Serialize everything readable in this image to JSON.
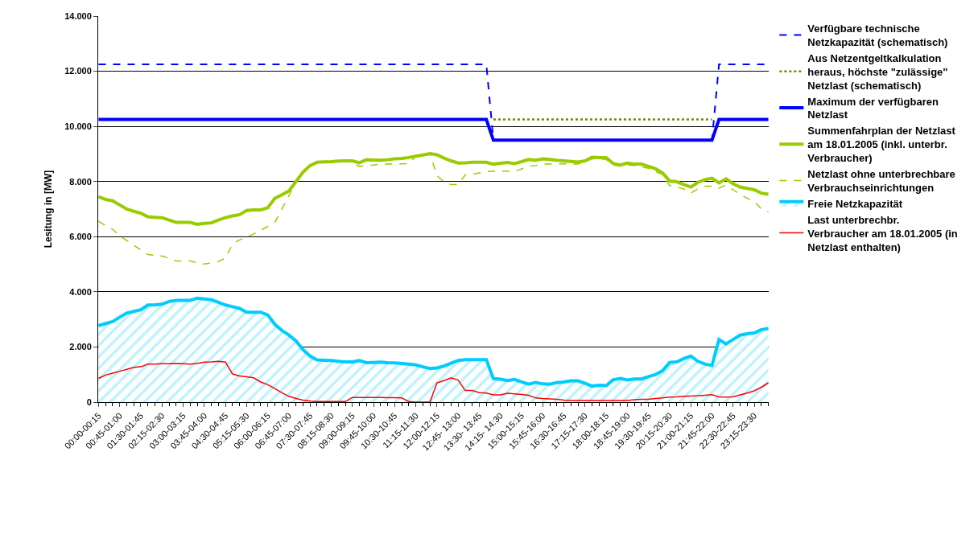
{
  "chart_data": {
    "type": "line",
    "ylabel": "Lesitung in [MW]",
    "categories": [
      "00:00-00:15",
      null,
      null,
      "00:45-01:00",
      null,
      null,
      "01:30-01:45",
      null,
      null,
      "02:15-02:30",
      null,
      null,
      "03:00-03:15",
      null,
      null,
      "03:45-04:00",
      null,
      null,
      "04:30-04:45",
      null,
      null,
      "05:15-05:30",
      null,
      null,
      "06:00-06:15",
      null,
      null,
      "06:45-07:00",
      null,
      null,
      "07:30-07:45",
      null,
      null,
      "08:15-08:30",
      null,
      null,
      "09:00-09:15",
      null,
      null,
      "09:45-10:00",
      null,
      null,
      "10:30-10:45",
      null,
      null,
      "11:15-11:30",
      null,
      null,
      "12:00-12:15",
      null,
      null,
      "12:45- 13:00",
      null,
      null,
      "13:30- 13:45",
      null,
      null,
      "14:15- 14:30",
      null,
      null,
      "15:00-15:15",
      null,
      null,
      "15:45-16:00",
      null,
      null,
      "16:30-16:45",
      null,
      null,
      "17:15-17:30",
      null,
      null,
      "18:00-18:15",
      null,
      null,
      "18:45-19:00",
      null,
      null,
      "19:30-19:45",
      null,
      null,
      "20:15-20:30",
      null,
      null,
      "21:00-21:15",
      null,
      null,
      "21:45-22:00",
      null,
      null,
      "22:30-22:45",
      null,
      null,
      "23:15-23:30",
      null,
      null
    ],
    "series": [
      {
        "name": "Verfügbare technische Netzkapazität (schematisch)",
        "color": "#0000ff",
        "line_style": "dashed",
        "values": [
          12250,
          12250,
          12250,
          12250,
          12250,
          12250,
          12250,
          12250,
          12250,
          12250,
          12250,
          12250,
          12250,
          12250,
          12250,
          12250,
          12250,
          12250,
          12250,
          12250,
          12250,
          12250,
          12250,
          12250,
          12250,
          12250,
          12250,
          12250,
          12250,
          12250,
          12250,
          12250,
          12250,
          12250,
          12250,
          12250,
          12250,
          12250,
          12250,
          12250,
          12250,
          12250,
          12250,
          12250,
          12250,
          12250,
          12250,
          12250,
          12250,
          12250,
          12250,
          12250,
          12250,
          12250,
          12250,
          12250,
          9500,
          9500,
          9500,
          9500,
          9500,
          9500,
          9500,
          9500,
          9500,
          9500,
          9500,
          9500,
          9500,
          9500,
          9500,
          9500,
          9500,
          9500,
          9500,
          9500,
          9500,
          9500,
          9500,
          9500,
          9500,
          9500,
          9500,
          9500,
          9500,
          9500,
          9500,
          9500,
          12250,
          12250,
          12250,
          12250,
          12250,
          12250,
          12250,
          12250
        ]
      },
      {
        "name": "Aus Netzentgeltkalkulation heraus, höchste \"zulässige\" Netzlast (schematisch)",
        "color": "#808000",
        "line_style": "dotted",
        "values": [
          null,
          null,
          null,
          null,
          null,
          null,
          null,
          null,
          null,
          null,
          null,
          null,
          null,
          null,
          null,
          null,
          null,
          null,
          null,
          null,
          null,
          null,
          null,
          null,
          null,
          null,
          null,
          null,
          null,
          null,
          null,
          null,
          null,
          null,
          null,
          null,
          null,
          null,
          null,
          null,
          null,
          null,
          null,
          null,
          null,
          null,
          null,
          null,
          null,
          null,
          null,
          null,
          null,
          null,
          null,
          null,
          10250,
          10250,
          10250,
          10250,
          10250,
          10250,
          10250,
          10250,
          10250,
          10250,
          10250,
          10250,
          10250,
          10250,
          10250,
          10250,
          10250,
          10250,
          10250,
          10250,
          10250,
          10250,
          10250,
          10250,
          10250,
          10250,
          10250,
          10250,
          10250,
          10250,
          10250,
          10250,
          null,
          null,
          null,
          null,
          null,
          null,
          null,
          null
        ]
      },
      {
        "name": "Maximum der verfügbaren Netzlast",
        "color": "#0000ff",
        "line_style": "solid",
        "values": [
          10250,
          10250,
          10250,
          10250,
          10250,
          10250,
          10250,
          10250,
          10250,
          10250,
          10250,
          10250,
          10250,
          10250,
          10250,
          10250,
          10250,
          10250,
          10250,
          10250,
          10250,
          10250,
          10250,
          10250,
          10250,
          10250,
          10250,
          10250,
          10250,
          10250,
          10250,
          10250,
          10250,
          10250,
          10250,
          10250,
          10250,
          10250,
          10250,
          10250,
          10250,
          10250,
          10250,
          10250,
          10250,
          10250,
          10250,
          10250,
          10250,
          10250,
          10250,
          10250,
          10250,
          10250,
          10250,
          10250,
          9500,
          9500,
          9500,
          9500,
          9500,
          9500,
          9500,
          9500,
          9500,
          9500,
          9500,
          9500,
          9500,
          9500,
          9500,
          9500,
          9500,
          9500,
          9500,
          9500,
          9500,
          9500,
          9500,
          9500,
          9500,
          9500,
          9500,
          9500,
          9500,
          9500,
          9500,
          9500,
          10250,
          10250,
          10250,
          10250,
          10250,
          10250,
          10250,
          10250
        ]
      },
      {
        "name": "Summenfahrplan der Netzlast am 18.01.2005 (inkl. unterbr. Verbraucher)",
        "color": "#99cc00",
        "line_style": "solid",
        "values": [
          7450,
          7350,
          7300,
          7150,
          7000,
          6920,
          6850,
          6720,
          6700,
          6690,
          6600,
          6520,
          6520,
          6520,
          6450,
          6480,
          6500,
          6600,
          6690,
          6750,
          6800,
          6950,
          6970,
          6970,
          7050,
          7390,
          7520,
          7660,
          8000,
          8340,
          8580,
          8700,
          8710,
          8720,
          8740,
          8750,
          8750,
          8680,
          8790,
          8780,
          8770,
          8790,
          8820,
          8840,
          8870,
          8920,
          8960,
          9010,
          8970,
          8850,
          8750,
          8670,
          8680,
          8700,
          8700,
          8700,
          8630,
          8660,
          8690,
          8650,
          8720,
          8800,
          8770,
          8820,
          8800,
          8770,
          8750,
          8730,
          8710,
          8750,
          8880,
          8870,
          8870,
          8650,
          8600,
          8670,
          8630,
          8630,
          8550,
          8460,
          8310,
          8020,
          7990,
          7890,
          7800,
          7970,
          8070,
          8120,
          7950,
          8100,
          7920,
          7800,
          7750,
          7700,
          7580,
          7540
        ]
      },
      {
        "name": "Netzlast ohne unterbrechbare Verbrauchseinrichtungen",
        "color": "#99cc00",
        "line_style": "dashed",
        "values": [
          6560,
          6400,
          6270,
          6030,
          5860,
          5690,
          5520,
          5350,
          5320,
          5300,
          5210,
          5120,
          5120,
          5120,
          5050,
          5010,
          5050,
          5100,
          5220,
          5740,
          5880,
          5990,
          6100,
          6230,
          6370,
          6510,
          7000,
          7490,
          7970,
          8380,
          8580,
          8700,
          8710,
          8720,
          8740,
          8750,
          8700,
          8550,
          8580,
          8600,
          8630,
          8630,
          8630,
          8640,
          8650,
          8920,
          8960,
          9010,
          8210,
          7990,
          7890,
          7890,
          8240,
          8260,
          8310,
          8360,
          8380,
          8380,
          8380,
          8360,
          8460,
          8550,
          8580,
          8630,
          8630,
          8640,
          8650,
          8630,
          8630,
          8730,
          8820,
          8820,
          8800,
          8600,
          8550,
          8600,
          8580,
          8530,
          8480,
          8360,
          8260,
          7850,
          7810,
          7730,
          7580,
          7730,
          7830,
          7830,
          7760,
          7870,
          7700,
          7530,
          7390,
          7290,
          7000,
          6900
        ]
      },
      {
        "name": "Freie Netzkapazität",
        "color": "#00ccff",
        "type": "area",
        "line_style": "solid",
        "values": [
          2770,
          2850,
          2920,
          3080,
          3230,
          3290,
          3350,
          3520,
          3530,
          3550,
          3650,
          3690,
          3690,
          3690,
          3770,
          3740,
          3710,
          3620,
          3520,
          3460,
          3400,
          3260,
          3260,
          3260,
          3160,
          2820,
          2600,
          2430,
          2220,
          1900,
          1670,
          1530,
          1520,
          1510,
          1480,
          1460,
          1460,
          1510,
          1430,
          1440,
          1450,
          1430,
          1420,
          1400,
          1380,
          1350,
          1280,
          1220,
          1240,
          1310,
          1410,
          1510,
          1540,
          1540,
          1540,
          1540,
          850,
          830,
          780,
          820,
          730,
          650,
          710,
          660,
          650,
          710,
          730,
          770,
          770,
          680,
          580,
          610,
          600,
          810,
          860,
          800,
          840,
          840,
          920,
          1000,
          1140,
          1440,
          1460,
          1580,
          1670,
          1480,
          1380,
          1330,
          2270,
          2110,
          2270,
          2430,
          2480,
          2510,
          2630,
          2670
        ]
      },
      {
        "name": "Last unterbrechbr. Verbraucher am 18.01.2005 (in Netzlast enthalten)",
        "color": "#ff0000",
        "line_style": "solid",
        "values": [
          860,
          980,
          1050,
          1120,
          1190,
          1260,
          1280,
          1380,
          1380,
          1390,
          1390,
          1400,
          1390,
          1380,
          1400,
          1450,
          1460,
          1480,
          1450,
          1020,
          950,
          920,
          880,
          730,
          630,
          490,
          340,
          210,
          130,
          70,
          40,
          20,
          20,
          20,
          20,
          20,
          170,
          170,
          170,
          170,
          170,
          160,
          160,
          150,
          20,
          0,
          0,
          0,
          700,
          780,
          880,
          800,
          420,
          420,
          340,
          330,
          260,
          260,
          320,
          300,
          280,
          250,
          150,
          130,
          120,
          100,
          70,
          60,
          60,
          60,
          60,
          60,
          60,
          60,
          60,
          60,
          90,
          100,
          100,
          130,
          150,
          180,
          190,
          210,
          220,
          230,
          250,
          270,
          190,
          180,
          190,
          260,
          330,
          410,
          540,
          700
        ]
      }
    ],
    "ylim": [
      0,
      14000
    ],
    "yticks": [
      0,
      {
        "value": 2000,
        "label": "2.000"
      },
      {
        "value": 4000,
        "label": "4.000"
      },
      {
        "value": 6000,
        "label": "6.000"
      },
      {
        "value": 8000,
        "label": "8.000"
      },
      {
        "value": 10000,
        "label": "10.000"
      },
      {
        "value": 12000,
        "label": "12.000"
      },
      {
        "value": 14000,
        "label": "14.000"
      }
    ],
    "grid": "y",
    "legend": "right",
    "marker": "none"
  }
}
